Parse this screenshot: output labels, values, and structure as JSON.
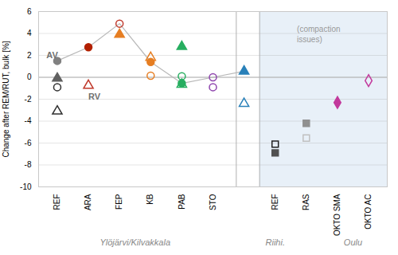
{
  "chart_data": {
    "type": "scatter",
    "ylabel": "Change after REM/RUT, bulk [%]",
    "xlim": [
      -0.6,
      10.6
    ],
    "xticks": [
      {
        "value": 0,
        "label": "REF"
      },
      {
        "value": 1,
        "label": "ARA"
      },
      {
        "value": 2,
        "label": "FEP"
      },
      {
        "value": 3,
        "label": "KB"
      },
      {
        "value": 4,
        "label": "PAB"
      },
      {
        "value": 5,
        "label": "STO"
      },
      {
        "value": 7,
        "label": "REF"
      },
      {
        "value": 8,
        "label": "RAS"
      },
      {
        "value": 9,
        "label": "OKTO SMA"
      },
      {
        "value": 10,
        "label": "OKTO AC"
      }
    ],
    "ylim": [
      -10,
      6
    ],
    "yticks": [
      -10,
      -8,
      -6,
      -4,
      -2,
      0,
      2,
      4,
      6
    ],
    "grid": true,
    "background_shade": {
      "x_start": 6.5,
      "x_end": 10.7,
      "color": "#e8f0f8"
    },
    "hline_y": 0,
    "vlines": [
      5.75,
      6.5
    ],
    "line": {
      "x": [
        0,
        1,
        2,
        3,
        4,
        5,
        6
      ],
      "y": [
        1.5,
        2.75,
        4.9,
        1.4,
        -0.55,
        0,
        0.55
      ],
      "color": "#b8b8b8"
    },
    "points": [
      {
        "x": 0,
        "y": 1.5,
        "marker": "circle",
        "color": "#808080"
      },
      {
        "x": 0,
        "y": -0.1,
        "marker": "triangle",
        "color": "#606060"
      },
      {
        "x": 0,
        "y": -0.9,
        "marker": "circle-open",
        "color": "#303030"
      },
      {
        "x": 0,
        "y": -3.1,
        "marker": "triangle-open",
        "color": "#303030"
      },
      {
        "x": 1,
        "y": 2.75,
        "marker": "circle",
        "color": "#b22000"
      },
      {
        "x": 1,
        "y": -0.75,
        "marker": "triangle-open",
        "color": "#c0392b"
      },
      {
        "x": 2,
        "y": 4.9,
        "marker": "circle-open",
        "color": "#c0392b"
      },
      {
        "x": 2,
        "y": 3.9,
        "marker": "triangle",
        "color": "#e67e22"
      },
      {
        "x": 3,
        "y": 1.4,
        "marker": "circle",
        "color": "#e67e22"
      },
      {
        "x": 3,
        "y": 1.8,
        "marker": "triangle-open",
        "color": "#e67e22"
      },
      {
        "x": 3,
        "y": 0.15,
        "marker": "circle-open",
        "color": "#e67e22"
      },
      {
        "x": 4,
        "y": -0.55,
        "marker": "circle",
        "color": "#27ae60"
      },
      {
        "x": 4,
        "y": 2.8,
        "marker": "triangle",
        "color": "#27ae60"
      },
      {
        "x": 4,
        "y": -0.65,
        "marker": "triangle-open",
        "color": "#27ae60"
      },
      {
        "x": 4,
        "y": 0.1,
        "marker": "circle-open",
        "color": "#27ae60"
      },
      {
        "x": 5,
        "y": 0,
        "marker": "circle-open",
        "color": "#8e44ad"
      },
      {
        "x": 5,
        "y": -0.9,
        "marker": "circle-open",
        "color": "#8e44ad"
      },
      {
        "x": 6,
        "y": 0.55,
        "marker": "triangle",
        "color": "#2980b9"
      },
      {
        "x": 6,
        "y": -2.4,
        "marker": "triangle-open",
        "color": "#2980b9"
      },
      {
        "x": 7,
        "y": -6.9,
        "marker": "square",
        "color": "#505050"
      },
      {
        "x": 7,
        "y": -6.1,
        "marker": "square-open",
        "color": "#202020"
      },
      {
        "x": 8,
        "y": -4.2,
        "marker": "square",
        "color": "#909090"
      },
      {
        "x": 8,
        "y": -5.55,
        "marker": "square-open",
        "color": "#c0c0c0"
      },
      {
        "x": 9,
        "y": -2.3,
        "marker": "diamond",
        "color": "#c2399c"
      },
      {
        "x": 10,
        "y": -0.3,
        "marker": "diamond-open",
        "color": "#c2399c"
      }
    ],
    "annotations": [
      {
        "text": "AV",
        "x": -0.35,
        "y": 1.6
      },
      {
        "text": "RV",
        "x": 1,
        "y": -2.2
      },
      {
        "text": "(compaction\nissues)",
        "x": 7.7,
        "y": 4.8
      }
    ],
    "region_labels": [
      {
        "text": "Ylöjärvi/Kilvakkala",
        "x": 2.5
      },
      {
        "text": "Riihi.",
        "x": 7
      },
      {
        "text": "Oulu",
        "x": 9.5
      }
    ]
  }
}
